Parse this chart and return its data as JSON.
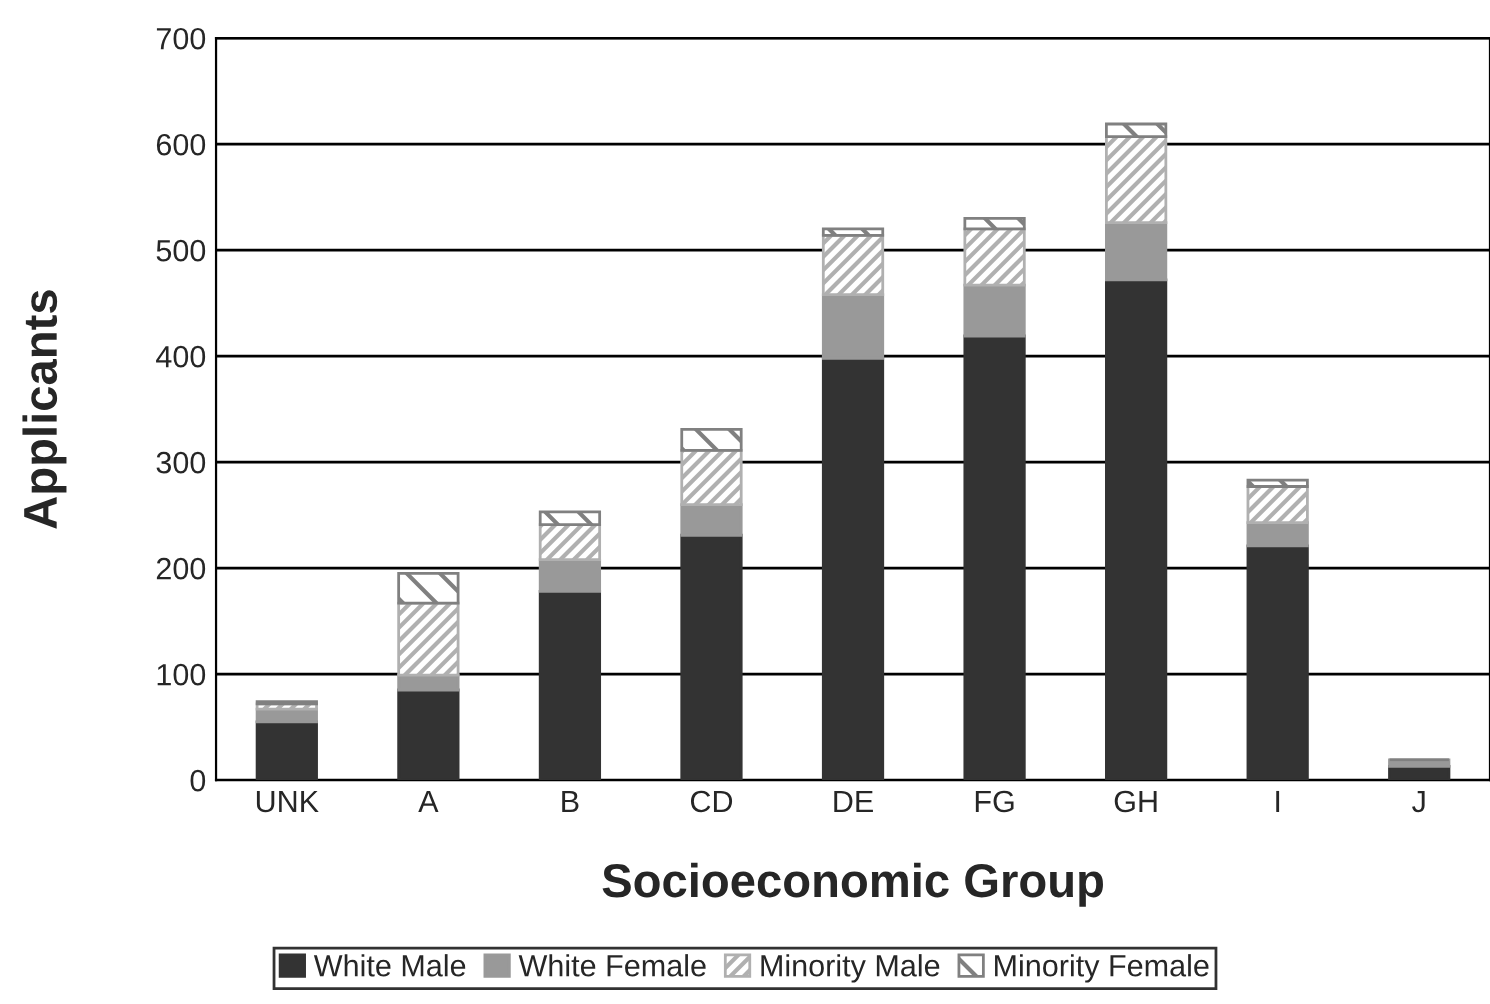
{
  "chart_data": {
    "type": "bar",
    "stacked": true,
    "xlabel": "Socioeconomic Group",
    "ylabel": "Applicants",
    "categories": [
      "UNK",
      "A",
      "B",
      "CD",
      "DE",
      "FG",
      "GH",
      "I",
      "J"
    ],
    "series": [
      {
        "name": "White Male",
        "color": "#333333",
        "values": [
          55,
          85,
          178,
          231,
          398,
          419,
          472,
          221,
          13
        ]
      },
      {
        "name": "White Female",
        "color": "#999999",
        "values": [
          12,
          14,
          30,
          29,
          60,
          48,
          54,
          22,
          6
        ]
      },
      {
        "name": "Minority Male",
        "color": "#b0b0b0",
        "values": [
          5,
          68,
          33,
          51,
          56,
          53,
          81,
          34,
          0
        ]
      },
      {
        "name": "Minority Female",
        "color": "#808080",
        "values": [
          2,
          28,
          12,
          20,
          6,
          10,
          12,
          6,
          0
        ]
      }
    ],
    "ylim": [
      0,
      700
    ],
    "yticks": [
      0,
      100,
      200,
      300,
      400,
      500,
      600,
      700
    ],
    "grid": "y",
    "legend": "bottom"
  }
}
